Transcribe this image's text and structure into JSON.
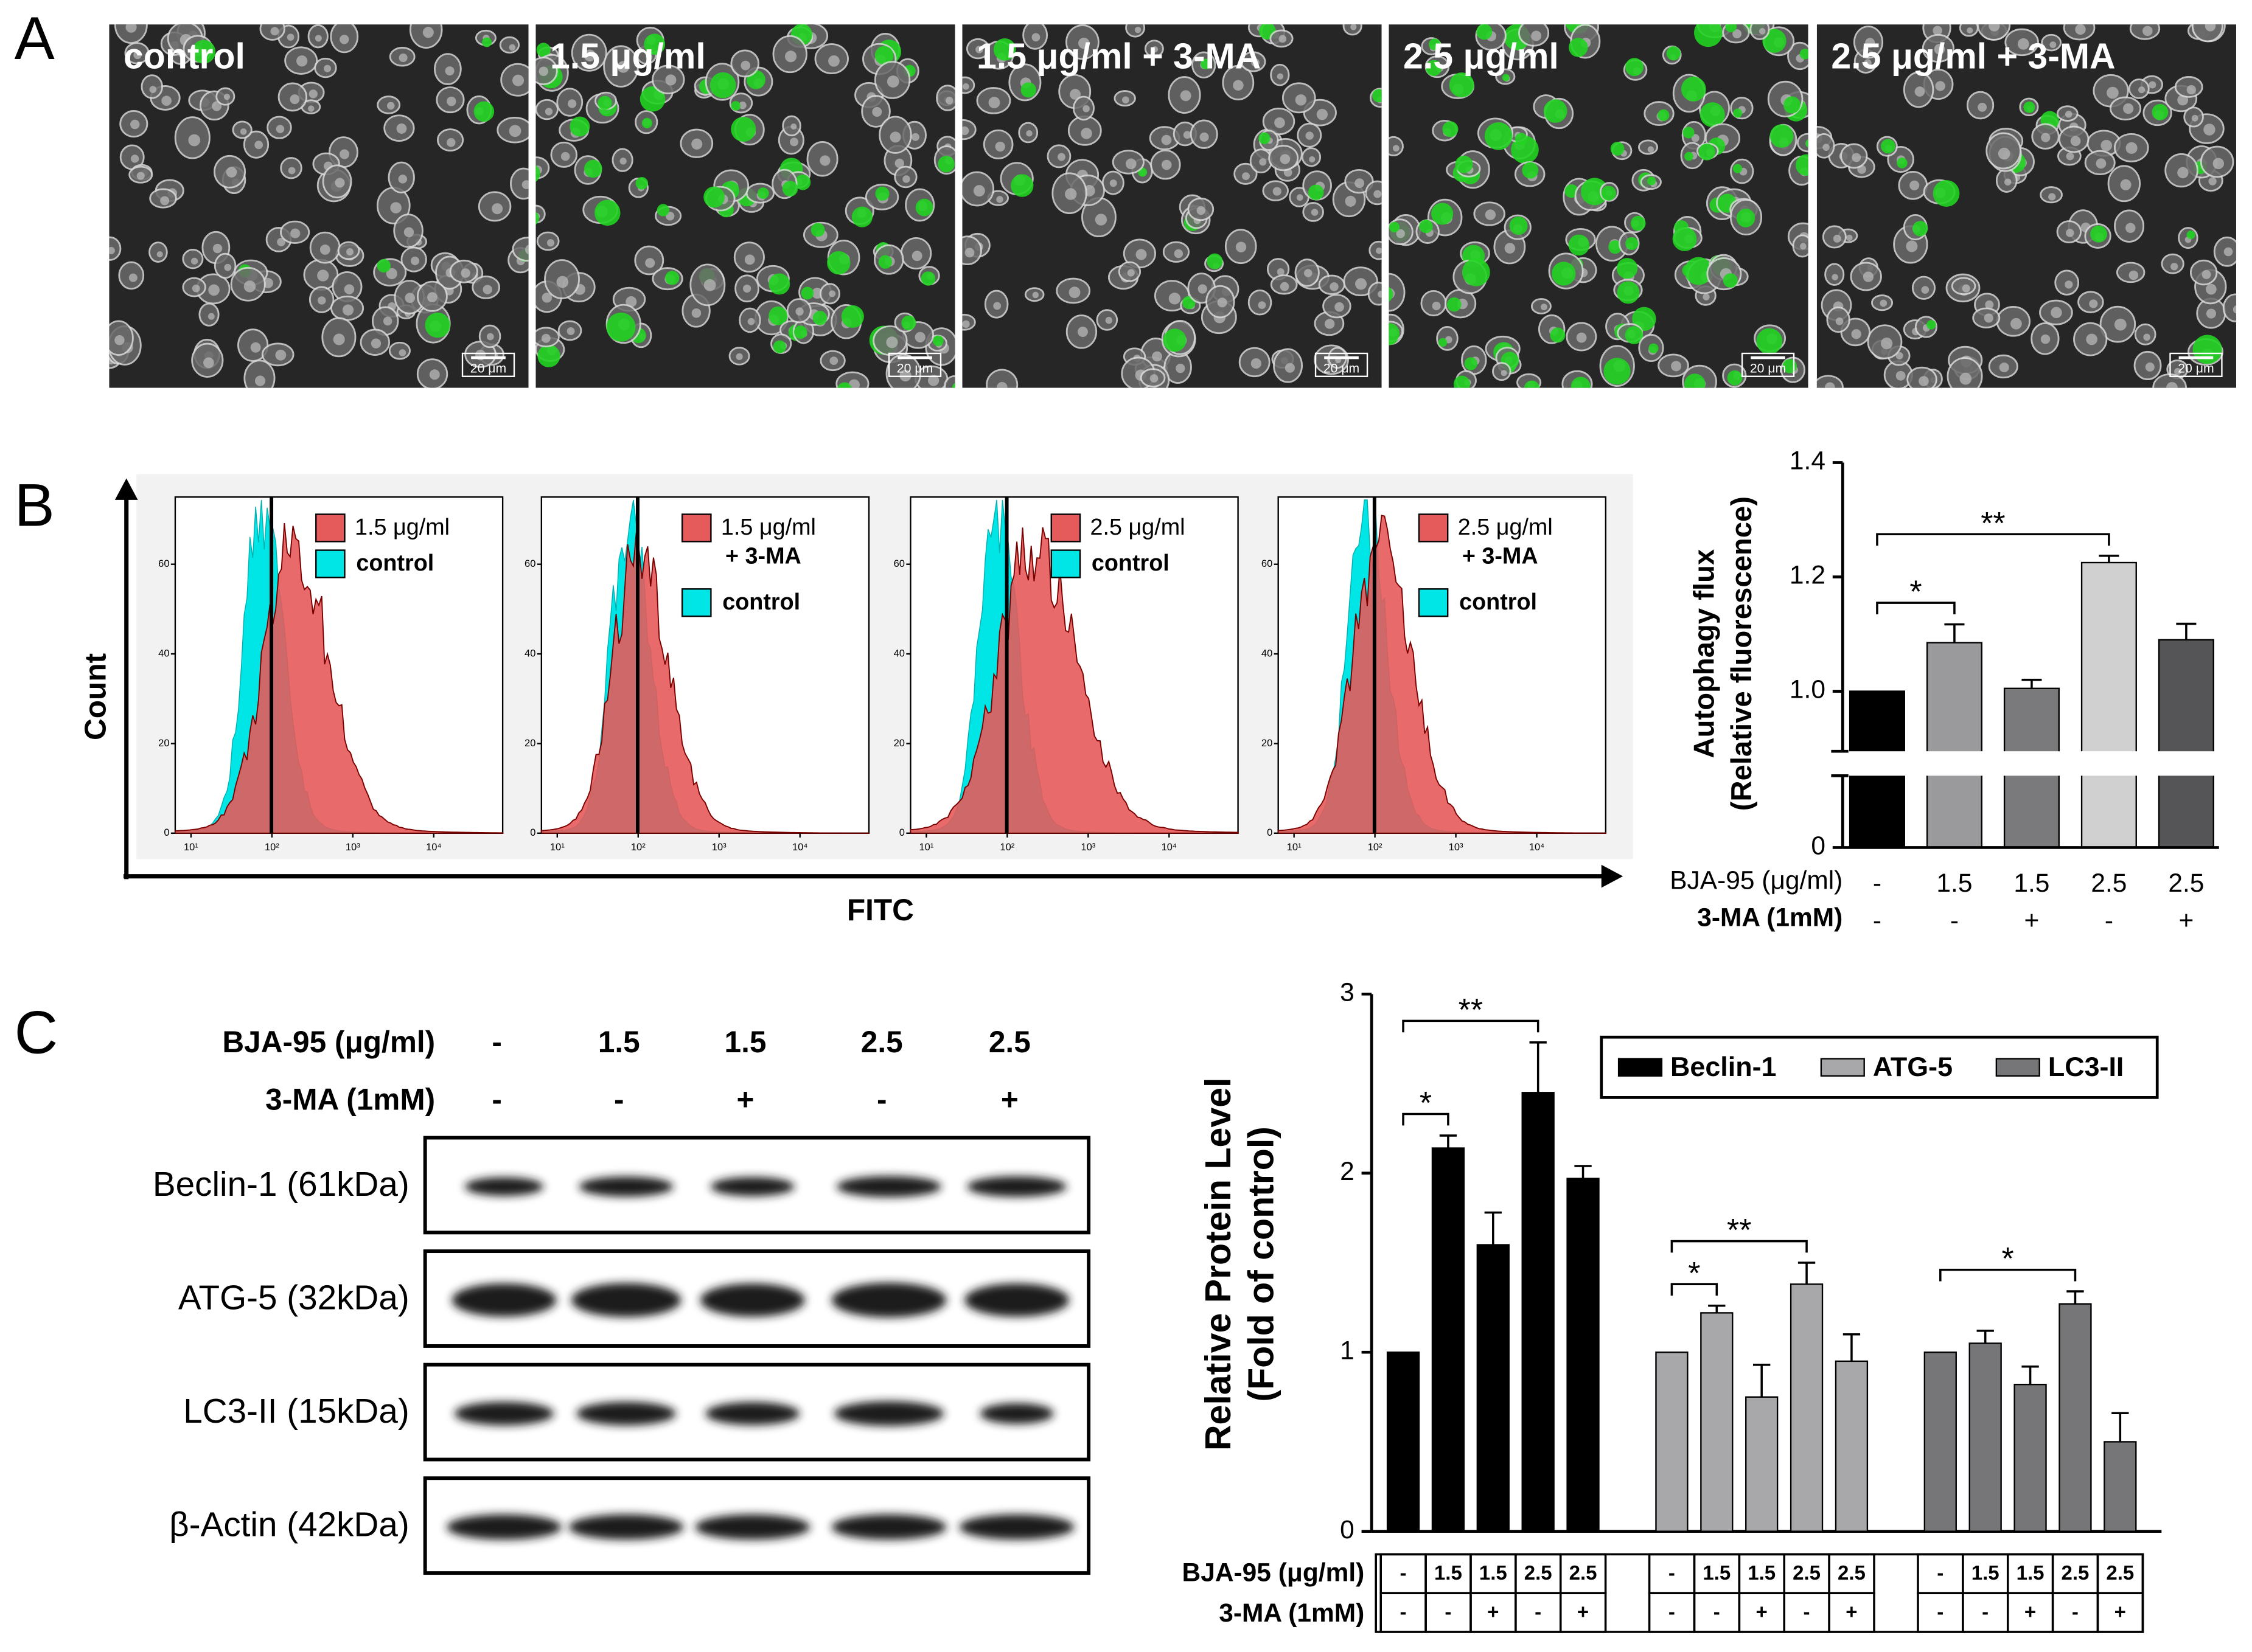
{
  "panel_labels": [
    "A",
    "B",
    "C"
  ],
  "microscopy": {
    "panels": [
      "control",
      "1.5 μg/ml",
      "1.5 μg/ml + 3-MA",
      "2.5 μg/ml",
      "2.5 μg/ml + 3-MA"
    ],
    "scale_bar": "20 μm"
  },
  "flow": {
    "ylabel": "Count",
    "xlabel": "FITC",
    "yticks": [
      0,
      20,
      40,
      60
    ],
    "xticks": [
      {
        "value": 10,
        "label": "10¹"
      },
      {
        "value": 100,
        "label": "10²"
      },
      {
        "value": 1000,
        "label": "10³"
      },
      {
        "value": 10000,
        "label": "10⁴"
      }
    ],
    "plots": [
      {
        "treated": [
          "1.5 μg/ml"
        ],
        "control": "control"
      },
      {
        "treated": [
          "1.5 μg/ml",
          "+ 3-MA"
        ],
        "control": "control"
      },
      {
        "treated": [
          "2.5 μg/ml"
        ],
        "control": "control"
      },
      {
        "treated": [
          "2.5 μg/ml",
          "+ 3-MA"
        ],
        "control": "control"
      }
    ]
  },
  "blot": {
    "condition_labels": [
      "BJA-95 (μg/ml)",
      "3-MA (1mM)"
    ],
    "conditions": [
      [
        "-",
        "1.5",
        "1.5",
        "2.5",
        "2.5"
      ],
      [
        "-",
        "-",
        "+",
        "-",
        "+"
      ]
    ],
    "bands": [
      "Beclin-1 (61kDa)",
      "ATG-5 (32kDa)",
      "LC3-II (15kDa)",
      "β-Actin (42kDa)"
    ]
  },
  "chart_data": [
    {
      "type": "bar",
      "ylabel": [
        "Autophagy flux",
        "(Relative fluorescence)"
      ],
      "row_labels": [
        "BJA-95 (μg/ml)",
        "3-MA (1mM)"
      ],
      "categories": [
        "-",
        "1.5",
        "1.5",
        "2.5",
        "2.5"
      ],
      "categories2": [
        "-",
        "-",
        "+",
        "-",
        "+"
      ],
      "values": [
        1.0,
        1.085,
        1.005,
        1.225,
        1.09
      ],
      "errors": [
        null,
        0.032,
        0.015,
        0.012,
        0.028
      ],
      "colors": [
        "#000000",
        "#9a9a9c",
        "#7a7a7c",
        "#d0d0d0",
        "#555557"
      ],
      "ylim": [
        0,
        1.4
      ],
      "axis_break": [
        0.125,
        0.9
      ],
      "yticks": [
        0,
        {
          "value": 1,
          "label": "1.0"
        },
        {
          "value": 1.2,
          "label": "1.2"
        },
        {
          "value": 1.4,
          "label": "1.4"
        }
      ],
      "annotations": [
        {
          "text": "*",
          "from": 0,
          "to": 1
        },
        {
          "text": "**",
          "from": 0,
          "to": 3
        }
      ]
    },
    {
      "type": "grouped_bar",
      "ylabel": [
        "Relative Protein Level",
        "(Fold of control)"
      ],
      "row_labels": [
        "BJA-95 (μg/ml)",
        "3-MA (1mM)"
      ],
      "categories": [
        "-",
        "1.5",
        "1.5",
        "2.5",
        "2.5"
      ],
      "categories2": [
        "-",
        "-",
        "+",
        "-",
        "+"
      ],
      "series": [
        {
          "name": "Beclin-1",
          "color": "#000000",
          "values": [
            1,
            2.14,
            1.6,
            2.45,
            1.97
          ],
          "errors": [
            null,
            0.07,
            0.18,
            0.28,
            0.07
          ]
        },
        {
          "name": "ATG-5",
          "color": "#a8a8aa",
          "values": [
            1,
            1.22,
            0.75,
            1.38,
            0.95
          ],
          "errors": [
            null,
            0.04,
            0.18,
            0.12,
            0.15
          ]
        },
        {
          "name": "LC3-II",
          "color": "#767678",
          "values": [
            1,
            1.05,
            0.82,
            1.27,
            0.5
          ],
          "errors": [
            null,
            0.07,
            0.1,
            0.07,
            0.16
          ]
        }
      ],
      "ylim": [
        0,
        3
      ],
      "yticks": [
        0,
        1,
        2,
        3
      ],
      "annotations": [
        {
          "series": 0,
          "text": "*",
          "from": 0,
          "to": 1
        },
        {
          "series": 0,
          "text": "**",
          "from": 0,
          "to": 3
        },
        {
          "series": 1,
          "text": "*",
          "from": 0,
          "to": 1
        },
        {
          "series": 1,
          "text": "**",
          "from": 0,
          "to": 3
        },
        {
          "series": 2,
          "text": "*",
          "from": 0,
          "to": 3
        }
      ]
    }
  ]
}
